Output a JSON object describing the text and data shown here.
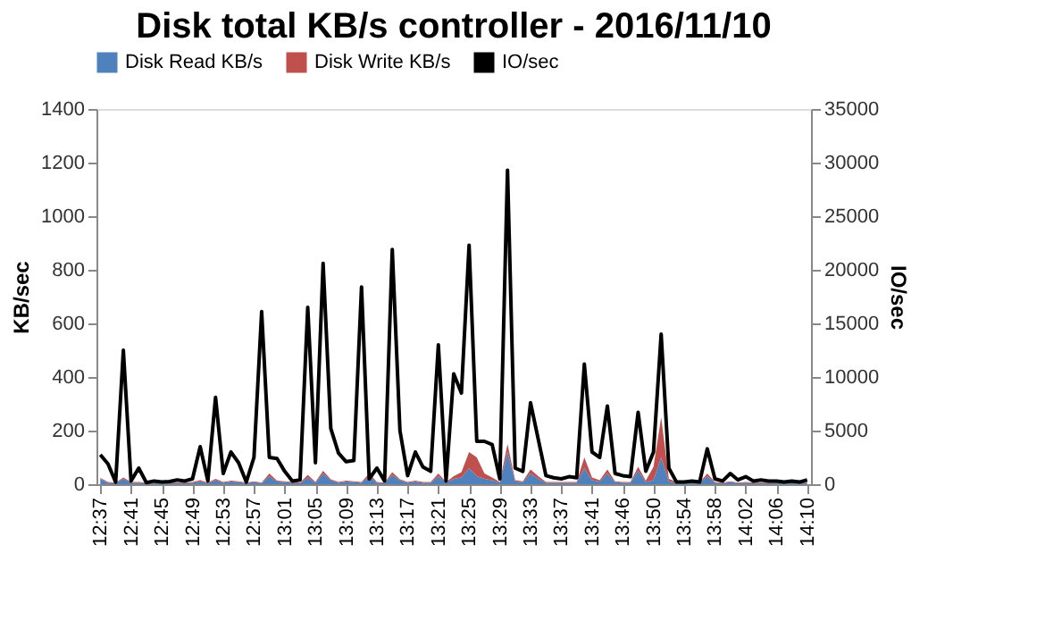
{
  "chart_data": {
    "type": "area",
    "title": "Disk total KB/s controller - 2016/11/10",
    "xlabel": null,
    "ylabel": "KB/sec",
    "y2label": "IO/sec",
    "categories": [
      "12:37",
      null,
      null,
      null,
      "12:41",
      null,
      null,
      null,
      "12:45",
      null,
      null,
      null,
      "12:49",
      null,
      null,
      null,
      "12:53",
      null,
      null,
      null,
      "12:57",
      null,
      null,
      null,
      "13:01",
      null,
      null,
      null,
      "13:05",
      null,
      null,
      null,
      "13:09",
      null,
      null,
      null,
      "13:13",
      null,
      null,
      null,
      "13:17",
      null,
      null,
      null,
      "13:21",
      null,
      null,
      null,
      "13:25",
      null,
      null,
      null,
      "13:29",
      null,
      null,
      null,
      "13:33",
      null,
      null,
      null,
      "13:37",
      null,
      null,
      null,
      "13:41",
      null,
      null,
      null,
      "13:46",
      null,
      null,
      null,
      "13:50",
      null,
      null,
      null,
      "13:54",
      null,
      null,
      null,
      "13:58",
      null,
      null,
      null,
      "14:02",
      null,
      null,
      null,
      "14:06",
      null,
      null,
      null,
      "14:10"
    ],
    "stacked": true,
    "series": [
      {
        "name": "Disk Read KB/s",
        "color": "#4f81bd",
        "values": [
          20,
          5,
          3,
          20,
          5,
          5,
          3,
          3,
          3,
          3,
          3,
          3,
          5,
          10,
          3,
          15,
          5,
          10,
          8,
          3,
          8,
          3,
          30,
          10,
          8,
          5,
          3,
          25,
          5,
          40,
          15,
          5,
          10,
          8,
          5,
          30,
          5,
          3,
          35,
          15,
          5,
          10,
          5,
          5,
          30,
          5,
          20,
          25,
          60,
          30,
          20,
          15,
          5,
          120,
          10,
          8,
          40,
          20,
          5,
          5,
          5,
          5,
          5,
          60,
          15,
          10,
          40,
          8,
          5,
          5,
          50,
          8,
          15,
          100,
          10,
          5,
          3,
          3,
          3,
          30,
          5,
          3,
          8,
          3,
          5,
          3,
          3,
          3,
          3,
          3,
          3,
          3,
          3
        ]
      },
      {
        "name": "Disk Write KB/s",
        "color": "#c0504d",
        "values": [
          3,
          3,
          3,
          5,
          3,
          3,
          3,
          3,
          3,
          3,
          3,
          3,
          3,
          5,
          3,
          5,
          3,
          3,
          3,
          3,
          3,
          3,
          10,
          3,
          3,
          3,
          3,
          10,
          3,
          10,
          3,
          3,
          3,
          3,
          3,
          10,
          3,
          3,
          10,
          3,
          3,
          3,
          3,
          3,
          10,
          3,
          10,
          20,
          60,
          70,
          20,
          10,
          3,
          30,
          5,
          3,
          15,
          10,
          3,
          3,
          3,
          3,
          3,
          40,
          10,
          5,
          15,
          3,
          3,
          3,
          15,
          5,
          50,
          150,
          10,
          3,
          3,
          3,
          3,
          10,
          3,
          3,
          3,
          3,
          3,
          3,
          3,
          3,
          3,
          3,
          3,
          3,
          3
        ]
      },
      {
        "name": "IO/sec",
        "type": "line",
        "axis": "y2",
        "color": "#000000",
        "values": [
          2750,
          1900,
          200,
          12500,
          300,
          1500,
          150,
          300,
          200,
          250,
          400,
          300,
          500,
          3500,
          300,
          8100,
          1000,
          3000,
          2000,
          200,
          2500,
          16100,
          2500,
          2400,
          1200,
          300,
          400,
          16500,
          2000,
          20600,
          5200,
          2900,
          2100,
          2200,
          18400,
          500,
          1500,
          300,
          21900,
          5000,
          800,
          3000,
          1600,
          1200,
          13000,
          300,
          10300,
          8500,
          22300,
          4000,
          4000,
          3700,
          500,
          29300,
          1500,
          1200,
          7600,
          4200,
          800,
          600,
          500,
          700,
          600,
          11200,
          3000,
          2500,
          7300,
          1000,
          800,
          700,
          6700,
          1200,
          3000,
          14000,
          1500,
          200,
          200,
          300,
          200,
          3300,
          500,
          300,
          1000,
          400,
          700,
          300,
          400,
          300,
          300,
          200,
          300,
          200,
          400
        ]
      }
    ],
    "ylim": [
      0,
      1400
    ],
    "yticks": [
      0,
      200,
      400,
      600,
      800,
      1000,
      1200,
      1400
    ],
    "y2lim": [
      0,
      35000
    ],
    "y2ticks": [
      0,
      5000,
      10000,
      15000,
      20000,
      25000,
      30000,
      35000
    ],
    "grid": false,
    "legend": "top"
  }
}
